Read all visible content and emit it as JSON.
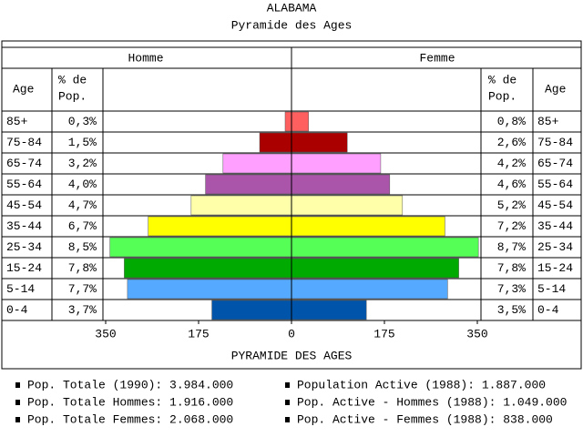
{
  "chart_data": {
    "type": "pyramid",
    "title": "ALABAMA",
    "subtitle": "Pyramide des Ages",
    "age_header": "Age",
    "pct_header": [
      "% de",
      "Pop."
    ],
    "xlabel": "PYRAMIDE DES AGES",
    "categories": [
      "85+",
      "75-84",
      "65-74",
      "55-64",
      "45-54",
      "35-44",
      "25-34",
      "15-24",
      "5-14",
      "0-4"
    ],
    "colors": [
      "#ff5f5f",
      "#aa0000",
      "#ff9fff",
      "#aa55aa",
      "#ffffaa",
      "#ffff00",
      "#55ff55",
      "#00aa00",
      "#55aaff",
      "#0055aa"
    ],
    "series": [
      {
        "name": "Homme",
        "values": [
          12,
          60,
          129,
          162,
          189,
          270,
          342,
          315,
          309,
          150
        ],
        "percent": [
          0.3,
          1.5,
          3.2,
          4.0,
          4.7,
          6.7,
          8.5,
          7.8,
          7.7,
          3.7
        ],
        "percent_labels": [
          "0,3%",
          "1,5%",
          "3,2%",
          "4,0%",
          "4,7%",
          "6,7%",
          "8,5%",
          "7,8%",
          "7,7%",
          "3,7%"
        ]
      },
      {
        "name": "Femme",
        "values": [
          32,
          105,
          168,
          185,
          209,
          289,
          352,
          315,
          294,
          141
        ],
        "percent": [
          0.8,
          2.6,
          4.2,
          4.6,
          5.2,
          7.2,
          8.7,
          7.8,
          7.3,
          3.5
        ],
        "percent_labels": [
          "0,8%",
          "2,6%",
          "4,2%",
          "4,6%",
          "5,2%",
          "7,2%",
          "8,7%",
          "7,8%",
          "7,3%",
          "3,5%"
        ]
      }
    ],
    "xlim": [
      0,
      350
    ],
    "xticks": [
      0,
      175,
      350
    ],
    "notes": [
      "Pop. Totale (1990): 3.984.000",
      "Pop. Totale Hommes: 1.916.000",
      "Pop. Totale Femmes: 2.068.000",
      "Population Active (1988): 1.887.000",
      "Pop. Active - Hommes (1988): 1.049.000",
      "Pop. Active - Femmes (1988): 838.000"
    ]
  }
}
